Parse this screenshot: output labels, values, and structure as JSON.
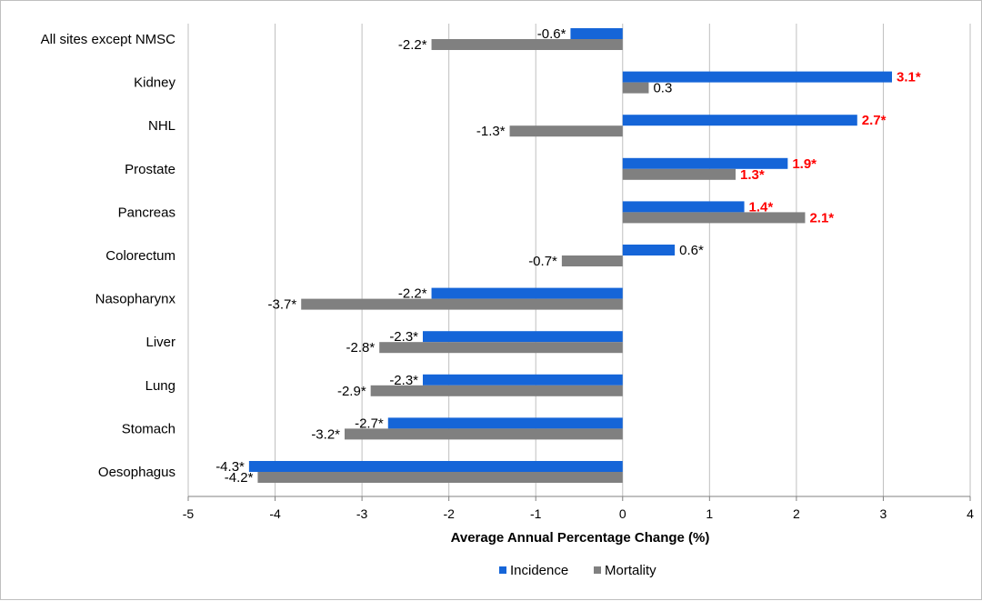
{
  "chart_data": {
    "type": "bar",
    "orientation": "horizontal",
    "categories": [
      "All sites except NMSC",
      "Kidney",
      "NHL",
      "Prostate",
      "Pancreas",
      "Colorectum",
      "Nasopharynx",
      "Liver",
      "Lung",
      "Stomach",
      "Oesophagus"
    ],
    "series": [
      {
        "name": "Incidence",
        "color": "#1565d8",
        "values": [
          -0.6,
          3.1,
          2.7,
          1.9,
          1.4,
          0.6,
          -2.2,
          -2.3,
          -2.3,
          -2.7,
          -4.3
        ],
        "labels": [
          "-0.6*",
          "3.1*",
          "2.7*",
          "1.9*",
          "1.4*",
          "0.6*",
          "-2.2*",
          "-2.3*",
          "-2.3*",
          "-2.7*",
          "-4.3*"
        ],
        "label_colors": [
          "#000000",
          "#ff0000",
          "#ff0000",
          "#ff0000",
          "#ff0000",
          "#000000",
          "#000000",
          "#000000",
          "#000000",
          "#000000",
          "#000000"
        ]
      },
      {
        "name": "Mortality",
        "color": "#808080",
        "values": [
          -2.2,
          0.3,
          -1.3,
          1.3,
          2.1,
          -0.7,
          -3.7,
          -2.8,
          -2.9,
          -3.2,
          -4.2
        ],
        "labels": [
          "-2.2*",
          "0.3",
          "-1.3*",
          "1.3*",
          "2.1*",
          "-0.7*",
          "-3.7*",
          "-2.8*",
          "-2.9*",
          "-3.2*",
          "-4.2*"
        ],
        "label_colors": [
          "#000000",
          "#000000",
          "#000000",
          "#ff0000",
          "#ff0000",
          "#000000",
          "#000000",
          "#000000",
          "#000000",
          "#000000",
          "#000000"
        ]
      }
    ],
    "xlabel": "Average Annual Percentage Change (%)",
    "ylabel": "",
    "title": "",
    "xlim": [
      -5,
      4
    ],
    "xticks": [
      -5,
      -4,
      -3,
      -2,
      -1,
      0,
      1,
      2,
      3,
      4
    ],
    "xtick_labels": [
      "-5",
      "-4",
      "-3",
      "-2",
      "-1",
      "0",
      "1",
      "2",
      "3",
      "4"
    ],
    "grid": "vertical",
    "legend": "bottom-center"
  }
}
